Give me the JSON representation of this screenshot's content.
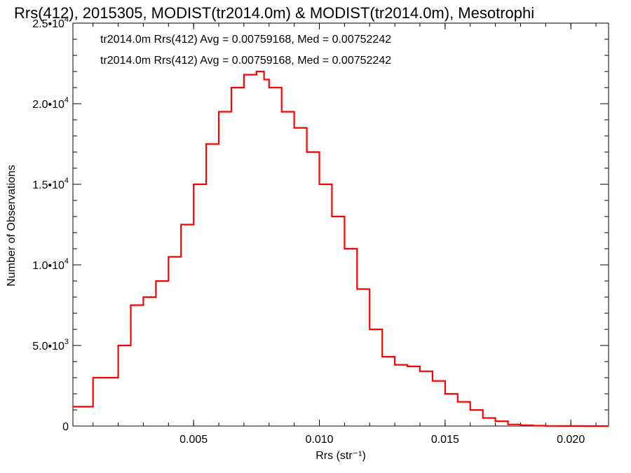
{
  "chart_data": {
    "type": "line",
    "title": "Rrs(412), 2015305, MODIST(tr2014.0m) & MODIST(tr2014.0m), Mesotrophi",
    "xlabel": "Rrs (str⁻¹)",
    "ylabel": "Number of Observations",
    "xlim": [
      0.0002,
      0.0215
    ],
    "ylim": [
      0,
      25000
    ],
    "x_ticks": [
      0.005,
      0.01,
      0.015,
      0.02
    ],
    "x_tick_labels": [
      "0.005",
      "0.010",
      "0.015",
      "0.020"
    ],
    "y_ticks": [
      0,
      5000,
      10000,
      15000,
      20000,
      25000
    ],
    "y_tick_labels": [
      {
        "mantissa": "0",
        "exp": ""
      },
      {
        "mantissa": "5.0•10",
        "exp": "3"
      },
      {
        "mantissa": "1.0•10",
        "exp": "4"
      },
      {
        "mantissa": "1.5•10",
        "exp": "4"
      },
      {
        "mantissa": "2.0•10",
        "exp": "4"
      },
      {
        "mantissa": "2.5•10",
        "exp": "4"
      }
    ],
    "legend": [
      {
        "text": "tr2014.0m Rrs(412) Avg = 0.00759168, Med = 0.00752242",
        "color": "#000000"
      },
      {
        "text": "tr2014.0m Rrs(412) Avg = 0.00759168, Med = 0.00752242",
        "color": "#ff0000"
      }
    ],
    "legend_placement": "top-left",
    "grid": false,
    "series": [
      {
        "color": "#ff0000",
        "style": "step",
        "x": [
          0.0002,
          0.001,
          0.002,
          0.0025,
          0.003,
          0.0035,
          0.004,
          0.0045,
          0.005,
          0.0055,
          0.006,
          0.0065,
          0.007,
          0.0075,
          0.0078,
          0.008,
          0.0085,
          0.009,
          0.0095,
          0.01,
          0.0105,
          0.011,
          0.0115,
          0.012,
          0.0125,
          0.013,
          0.0135,
          0.014,
          0.0145,
          0.015,
          0.0155,
          0.016,
          0.0165,
          0.017,
          0.0175,
          0.018,
          0.0185,
          0.019,
          0.0195,
          0.02,
          0.0205,
          0.021,
          0.0215
        ],
        "y": [
          1200,
          3000,
          5000,
          7500,
          8000,
          9000,
          10500,
          12500,
          15000,
          17500,
          19500,
          21000,
          21800,
          22000,
          21500,
          21000,
          19500,
          18500,
          17000,
          15000,
          13000,
          11000,
          8500,
          6000,
          4300,
          3800,
          3700,
          3400,
          2800,
          2000,
          1500,
          1000,
          500,
          300,
          100,
          50,
          20,
          10,
          5,
          3,
          2,
          1,
          1
        ]
      }
    ]
  }
}
